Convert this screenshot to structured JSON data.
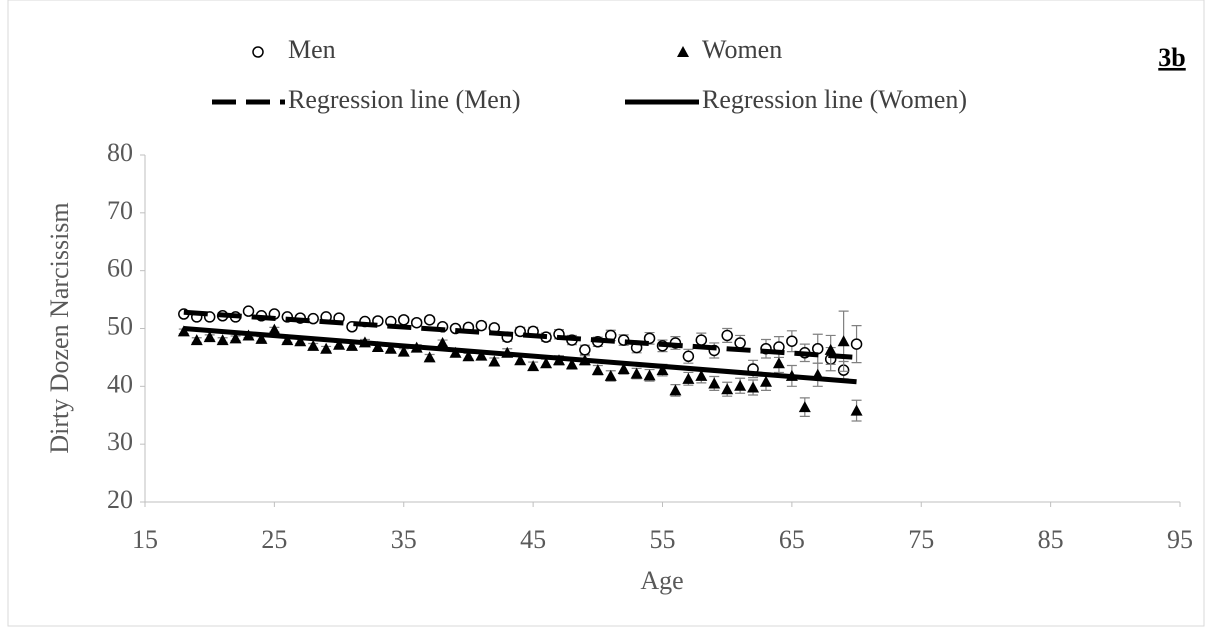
{
  "chart_data": {
    "type": "scatter",
    "label": "3b",
    "xlabel": "Age",
    "ylabel": "Dirty Dozen Narcissism",
    "xlim": [
      15,
      95
    ],
    "xticks": [
      15,
      25,
      35,
      45,
      55,
      65,
      75,
      85,
      95
    ],
    "ylim": [
      20,
      80
    ],
    "yticks": [
      20,
      30,
      40,
      50,
      60,
      70,
      80
    ],
    "x": [
      18,
      19,
      20,
      21,
      22,
      23,
      24,
      25,
      26,
      27,
      28,
      29,
      30,
      31,
      32,
      33,
      34,
      35,
      36,
      37,
      38,
      39,
      40,
      41,
      42,
      43,
      44,
      45,
      46,
      47,
      48,
      49,
      50,
      51,
      52,
      53,
      54,
      55,
      56,
      57,
      58,
      59,
      60,
      61,
      62,
      63,
      64,
      65,
      66,
      67,
      68,
      69,
      70
    ],
    "series": [
      {
        "name": "Men",
        "marker": "circle",
        "color": "#000000",
        "values": [
          52.5,
          52,
          52,
          52.2,
          52,
          53,
          52.2,
          52.5,
          52,
          51.8,
          51.7,
          52,
          51.8,
          50.3,
          51.2,
          51.3,
          51.2,
          51.5,
          51,
          51.5,
          50.3,
          50,
          50.2,
          50.5,
          50.1,
          48.5,
          49.5,
          49.5,
          48.5,
          49,
          48,
          46.3,
          47.7,
          48.8,
          48,
          46.7,
          48.3,
          47,
          47.5,
          45.2,
          48,
          46.2,
          48.8,
          47.5,
          43,
          46.5,
          46.8,
          47.8,
          45.8,
          46.5,
          44.7,
          42.8,
          47.3
        ],
        "errors": [
          0.4,
          0.4,
          0.4,
          0.4,
          0.4,
          0.4,
          0.4,
          0.4,
          0.4,
          0.4,
          0.4,
          0.4,
          0.4,
          0.5,
          0.5,
          0.5,
          0.5,
          0.5,
          0.5,
          0.5,
          0.5,
          0.5,
          0.5,
          0.6,
          0.6,
          0.7,
          0.7,
          0.7,
          0.7,
          0.8,
          0.8,
          0.8,
          0.8,
          0.9,
          0.9,
          0.9,
          1,
          1,
          1.1,
          1.2,
          1.2,
          1.3,
          1.2,
          1.3,
          1.5,
          1.6,
          1.8,
          1.8,
          1.5,
          2.5,
          2,
          1.5,
          3.2
        ]
      },
      {
        "name": "Women",
        "marker": "triangle",
        "color": "#000000",
        "values": [
          49.5,
          48,
          48.5,
          48,
          48.3,
          48.8,
          48.2,
          49.8,
          48,
          47.8,
          47,
          46.5,
          47.2,
          47,
          47.6,
          46.8,
          46.5,
          46,
          46.7,
          45,
          47.5,
          45.8,
          45.2,
          45.3,
          44.3,
          45.8,
          44.5,
          43.5,
          44,
          44.5,
          43.8,
          44.5,
          42.8,
          41.8,
          43,
          42.2,
          41.9,
          42.8,
          39.3,
          41.3,
          41.8,
          40.5,
          39.5,
          40.1,
          39.8,
          40.8,
          44,
          41.8,
          36.4,
          42,
          46.3,
          47.8,
          35.8
        ],
        "errors": [
          0.4,
          0.4,
          0.4,
          0.4,
          0.4,
          0.4,
          0.4,
          0.4,
          0.4,
          0.4,
          0.4,
          0.4,
          0.4,
          0.5,
          0.5,
          0.5,
          0.5,
          0.5,
          0.5,
          0.5,
          0.5,
          0.5,
          0.5,
          0.6,
          0.6,
          0.7,
          0.7,
          0.7,
          0.7,
          0.8,
          0.8,
          0.8,
          0.8,
          0.9,
          0.9,
          0.9,
          1,
          1,
          1,
          1.1,
          1.2,
          1.2,
          1.2,
          1.3,
          1.3,
          1.5,
          1.6,
          1.8,
          1.6,
          2,
          2.5,
          5.2,
          1.8
        ]
      },
      {
        "name": "Regression line (Men)",
        "marker": "line",
        "dash": true,
        "color": "#000000",
        "x": [
          18,
          70
        ],
        "values": [
          52.8,
          45
        ]
      },
      {
        "name": "Regression line (Women)",
        "marker": "line",
        "dash": false,
        "color": "#000000",
        "x": [
          18,
          70
        ],
        "values": [
          50,
          40.8
        ]
      }
    ]
  }
}
